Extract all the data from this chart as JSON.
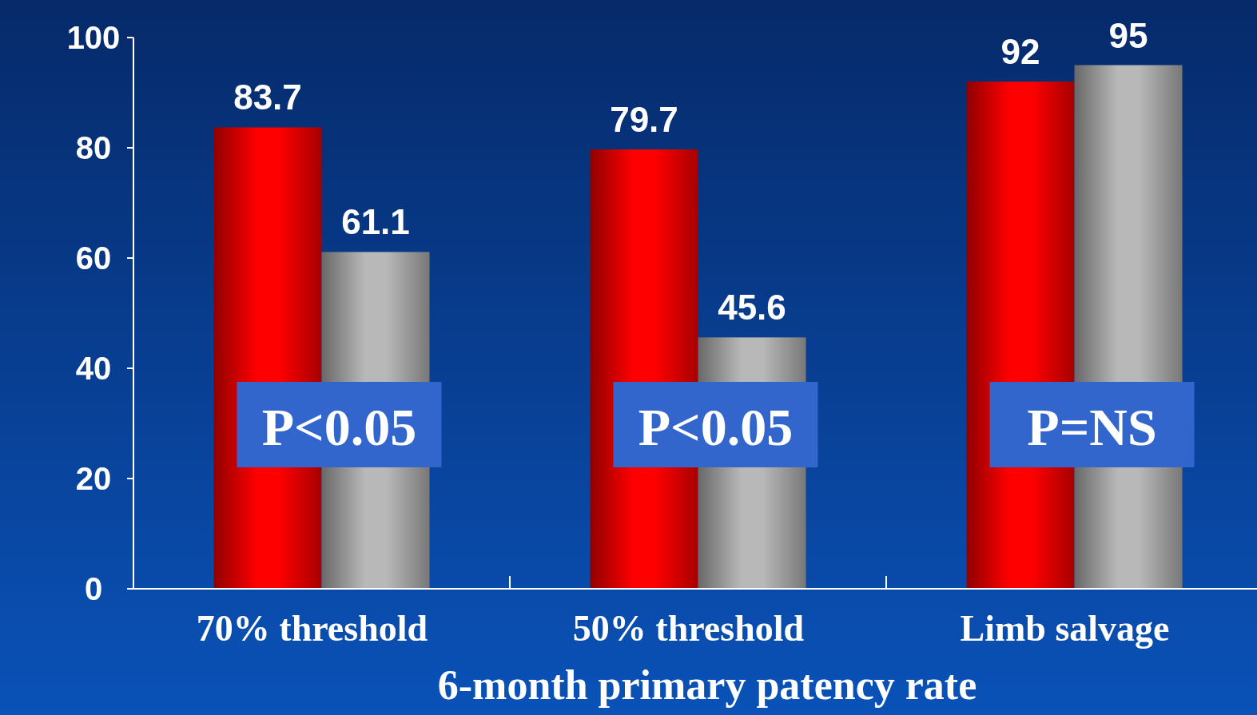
{
  "chart_data": {
    "type": "bar",
    "xlabel": "6-month primary patency rate",
    "categories": [
      "70% threshold",
      "50% threshold",
      "Limb salvage"
    ],
    "series": [
      {
        "color": "#ff0000",
        "values": [
          83.7,
          79.7,
          92
        ]
      },
      {
        "color": "#b8b8b8",
        "values": [
          61.1,
          45.6,
          95
        ]
      }
    ],
    "ylim": [
      0,
      100
    ],
    "yticks": [
      0,
      20,
      40,
      60,
      80,
      100
    ],
    "data_labels": true,
    "annotations": [
      "P<0.05",
      "P<0.05",
      "P=NS"
    ]
  }
}
